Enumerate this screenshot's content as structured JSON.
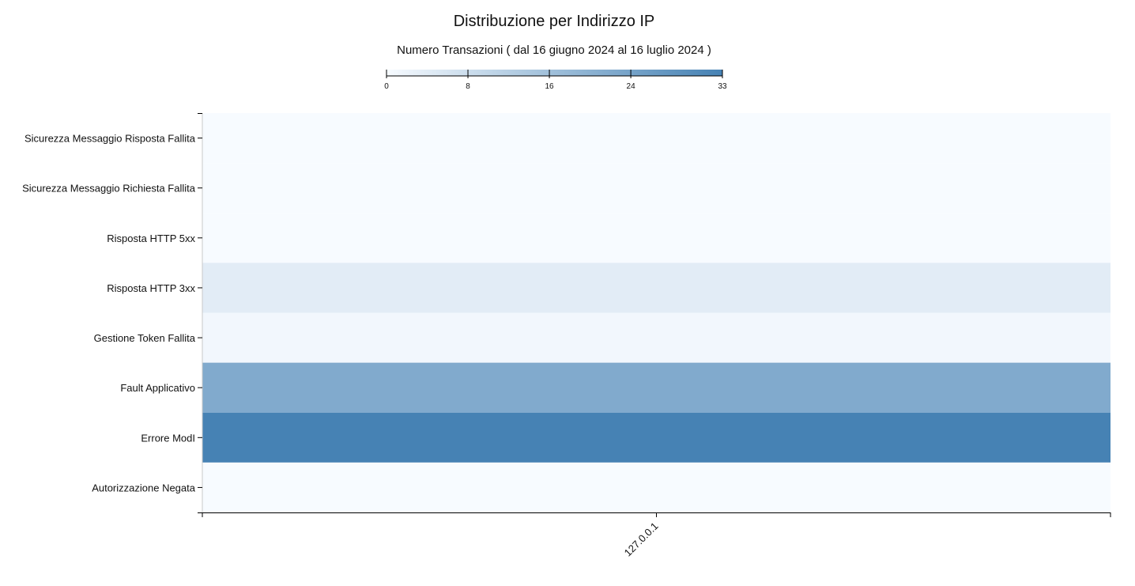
{
  "chart_data": {
    "type": "heatmap",
    "title": "Distribuzione per Indirizzo IP",
    "subtitle": "Numero Transazioni ( dal 16 giugno 2024 al 16 luglio 2024 )",
    "x": [
      "127.0.0.1"
    ],
    "y": [
      "Sicurezza Messaggio Risposta Fallita",
      "Sicurezza Messaggio Richiesta Fallita",
      "Risposta HTTP 5xx",
      "Risposta HTTP 3xx",
      "Gestione Token Fallita",
      "Fault Applicativo",
      "Errore ModI",
      "Autorizzazione Negata"
    ],
    "values": [
      [
        0
      ],
      [
        0
      ],
      [
        0
      ],
      [
        4
      ],
      [
        1
      ],
      [
        22
      ],
      [
        33
      ],
      [
        0
      ]
    ],
    "color_scale": {
      "min": 0,
      "max": 33,
      "ticks": [
        0,
        8,
        16,
        24,
        33
      ],
      "low_color": "#f7fbff",
      "high_color": "#4682b4"
    },
    "legend_position": "top"
  }
}
